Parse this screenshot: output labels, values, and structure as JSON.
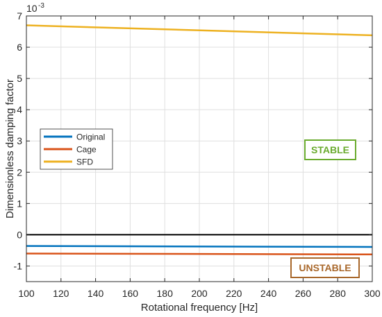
{
  "chart_data": {
    "type": "line",
    "xlabel": "Rotational frequency [Hz]",
    "ylabel": "Dimensionless damping factor",
    "y_exponent_label": "10",
    "y_exponent_power": "-3",
    "xlim": [
      100,
      300
    ],
    "ylim": [
      -1.5,
      7
    ],
    "xticks": [
      100,
      120,
      140,
      160,
      180,
      200,
      220,
      240,
      260,
      280,
      300
    ],
    "yticks": [
      -1,
      0,
      1,
      2,
      3,
      4,
      5,
      6,
      7
    ],
    "grid": true,
    "legend_position": "middle-left",
    "series": [
      {
        "name": "Original",
        "color": "#0072BD",
        "x": [
          100,
          300
        ],
        "y": [
          -0.36,
          -0.39
        ]
      },
      {
        "name": "Cage",
        "color": "#D95319",
        "x": [
          100,
          300
        ],
        "y": [
          -0.6,
          -0.63
        ]
      },
      {
        "name": "SFD",
        "color": "#EDB120",
        "x": [
          100,
          300
        ],
        "y": [
          6.7,
          6.38
        ]
      }
    ],
    "reference_line": {
      "y": 0,
      "color": "#000000"
    },
    "annotations": [
      {
        "text": "STABLE",
        "color": "#6AAB2E",
        "x": 275,
        "y": 2.7
      },
      {
        "text": "UNSTABLE",
        "color": "#A8672A",
        "x": 270,
        "y": -1.08
      }
    ]
  }
}
